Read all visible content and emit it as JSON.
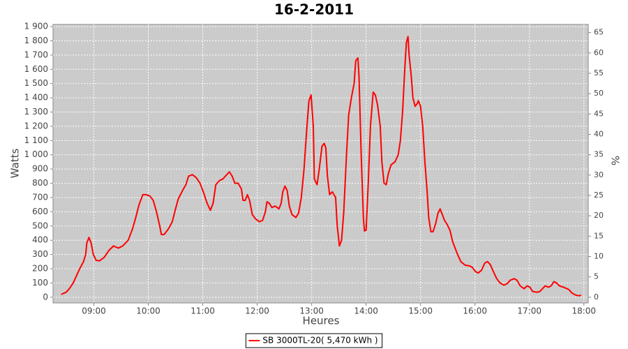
{
  "chart_data": {
    "type": "line",
    "title": "16-2-2011",
    "x_label": "Heures",
    "y_label": "Watts",
    "y2_label": "%",
    "x": [
      8.4,
      8.49,
      8.55,
      8.62,
      8.68,
      8.74,
      8.81,
      8.85,
      8.87,
      8.91,
      8.95,
      8.99,
      9.04,
      9.1,
      9.19,
      9.28,
      9.36,
      9.45,
      9.53,
      9.63,
      9.71,
      9.77,
      9.83,
      9.9,
      9.96,
      10.03,
      10.09,
      10.15,
      10.21,
      10.24,
      10.29,
      10.37,
      10.44,
      10.5,
      10.55,
      10.63,
      10.69,
      10.74,
      10.81,
      10.88,
      10.95,
      11.01,
      11.08,
      11.14,
      11.19,
      11.24,
      11.31,
      11.37,
      11.44,
      11.49,
      11.54,
      11.59,
      11.65,
      11.71,
      11.74,
      11.78,
      11.82,
      11.86,
      11.91,
      11.97,
      12.04,
      12.1,
      12.15,
      12.18,
      12.22,
      12.27,
      12.33,
      12.4,
      12.44,
      12.47,
      12.51,
      12.55,
      12.59,
      12.64,
      12.71,
      12.76,
      12.81,
      12.86,
      12.91,
      12.95,
      12.99,
      13.03,
      13.05,
      13.1,
      13.14,
      13.19,
      13.23,
      13.26,
      13.29,
      13.33,
      13.38,
      13.44,
      13.47,
      13.51,
      13.55,
      13.59,
      13.64,
      13.68,
      13.73,
      13.78,
      13.81,
      13.85,
      13.87,
      13.91,
      13.95,
      13.97,
      14.0,
      14.04,
      14.08,
      14.13,
      14.17,
      14.21,
      14.26,
      14.29,
      14.33,
      14.37,
      14.41,
      14.46,
      14.53,
      14.59,
      14.63,
      14.67,
      14.71,
      14.74,
      14.77,
      14.79,
      14.83,
      14.86,
      14.9,
      14.94,
      14.96,
      15.0,
      15.04,
      15.08,
      15.12,
      15.15,
      15.19,
      15.23,
      15.28,
      15.32,
      15.36,
      15.38,
      15.44,
      15.49,
      15.54,
      15.59,
      15.67,
      15.74,
      15.82,
      15.9,
      15.95,
      16.01,
      16.06,
      16.12,
      16.18,
      16.23,
      16.28,
      16.35,
      16.4,
      16.46,
      16.53,
      16.59,
      16.65,
      16.72,
      16.77,
      16.83,
      16.9,
      16.96,
      17.01,
      17.06,
      17.14,
      17.19,
      17.24,
      17.29,
      17.35,
      17.4,
      17.45,
      17.5,
      17.55,
      17.63,
      17.72,
      17.78,
      17.85,
      17.91,
      17.95
    ],
    "series": [
      {
        "name": "SB 3000TL-20( 5,470 kWh )",
        "color": "#ff0000",
        "values": [
          20,
          35,
          60,
          100,
          150,
          200,
          250,
          300,
          380,
          420,
          380,
          300,
          260,
          255,
          280,
          330,
          360,
          345,
          360,
          400,
          480,
          560,
          650,
          720,
          720,
          710,
          680,
          600,
          500,
          440,
          440,
          480,
          530,
          620,
          690,
          750,
          790,
          850,
          860,
          840,
          800,
          740,
          660,
          610,
          660,
          790,
          820,
          830,
          860,
          880,
          850,
          800,
          800,
          760,
          680,
          680,
          720,
          680,
          580,
          550,
          530,
          540,
          600,
          670,
          660,
          630,
          640,
          620,
          660,
          740,
          780,
          750,
          640,
          580,
          560,
          590,
          700,
          900,
          1180,
          1380,
          1420,
          1200,
          830,
          790,
          900,
          1060,
          1080,
          1050,
          850,
          720,
          740,
          700,
          500,
          360,
          400,
          600,
          1000,
          1280,
          1400,
          1500,
          1660,
          1680,
          1550,
          1000,
          560,
          465,
          470,
          800,
          1200,
          1440,
          1420,
          1350,
          1200,
          950,
          800,
          790,
          870,
          930,
          950,
          1000,
          1100,
          1300,
          1600,
          1790,
          1830,
          1700,
          1550,
          1400,
          1340,
          1360,
          1380,
          1340,
          1200,
          950,
          750,
          560,
          460,
          460,
          520,
          590,
          620,
          600,
          540,
          510,
          470,
          390,
          310,
          250,
          225,
          220,
          210,
          180,
          170,
          190,
          240,
          250,
          230,
          170,
          130,
          100,
          85,
          95,
          120,
          130,
          120,
          80,
          60,
          80,
          70,
          40,
          35,
          40,
          60,
          80,
          70,
          80,
          110,
          100,
          80,
          70,
          55,
          30,
          15,
          10,
          15
        ]
      }
    ],
    "xlim": [
      8.25,
      18.08
    ],
    "xticks": [
      {
        "value": 9,
        "label": "09:00"
      },
      {
        "value": 10,
        "label": "10:00"
      },
      {
        "value": 11,
        "label": "11:00"
      },
      {
        "value": 12,
        "label": "12:00"
      },
      {
        "value": 13,
        "label": "13:00"
      },
      {
        "value": 14,
        "label": "14:00"
      },
      {
        "value": 15,
        "label": "15:00"
      },
      {
        "value": 16,
        "label": "16:00"
      },
      {
        "value": 17,
        "label": "17:00"
      },
      {
        "value": 18,
        "label": "18:00"
      }
    ],
    "ylim": [
      -40,
      1915
    ],
    "yticks": [
      0,
      100,
      200,
      300,
      400,
      500,
      600,
      700,
      800,
      900,
      {
        "value": 1000,
        "label": "1 000"
      },
      {
        "value": 1100,
        "label": "1 100"
      },
      {
        "value": 1200,
        "label": "1 200"
      },
      {
        "value": 1300,
        "label": "1 300"
      },
      {
        "value": 1400,
        "label": "1 400"
      },
      {
        "value": 1500,
        "label": "1 500"
      },
      {
        "value": 1600,
        "label": "1 600"
      },
      {
        "value": 1700,
        "label": "1 700"
      },
      {
        "value": 1800,
        "label": "1 800"
      },
      {
        "value": 1900,
        "label": "1 900"
      }
    ],
    "y2lim": [
      -1.4,
      67
    ],
    "y2ticks": [
      0,
      5,
      10,
      15,
      20,
      25,
      30,
      35,
      40,
      45,
      50,
      55,
      60,
      65
    ],
    "grid": true,
    "legend": "bottom"
  }
}
